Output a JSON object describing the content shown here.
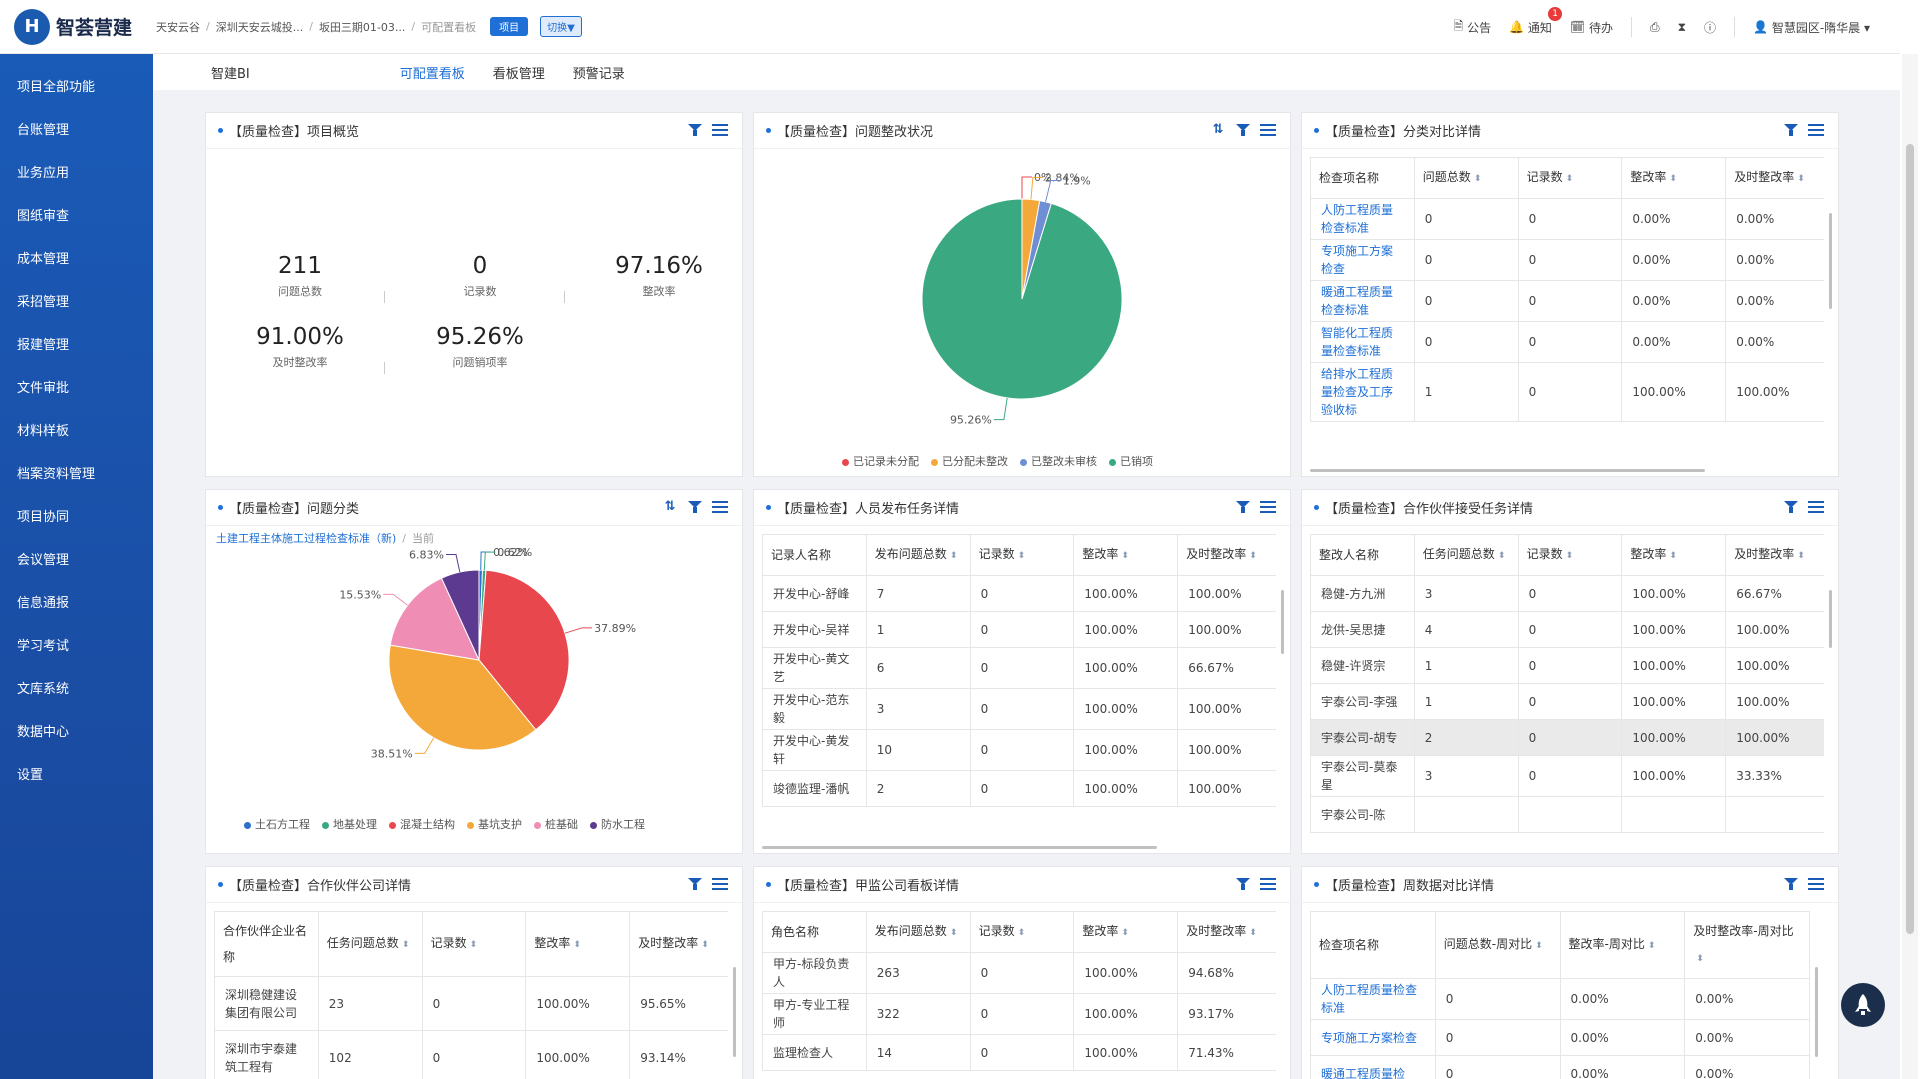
{
  "app": {
    "logo_char": "H",
    "name": "智荟营建"
  },
  "breadcrumb": [
    "天安云谷",
    "深圳天安云城投...",
    "坂田三期01-03...",
    "可配置看板"
  ],
  "header_tags": {
    "project": "项目",
    "switch": "切换▼"
  },
  "topbar": {
    "notice": "公告",
    "notify": "通知",
    "notify_count": "1",
    "todo": "待办",
    "user": "智慧园区-隋华晨 ▾"
  },
  "sidebar": [
    "项目全部功能",
    "台账管理",
    "业务应用",
    "图纸审查",
    "成本管理",
    "采招管理",
    "报建管理",
    "文件审批",
    "材料样板",
    "档案资料管理",
    "项目协同",
    "会议管理",
    "信息通报",
    "学习考试",
    "文库系统",
    "数据中心",
    "设置"
  ],
  "subnav": [
    "智建BI",
    "可配置看板",
    "看板管理",
    "预警记录"
  ],
  "panels": {
    "p1": {
      "title": "【质量检查】项目概览",
      "metrics": [
        {
          "v": "211",
          "l": "问题总数"
        },
        {
          "v": "0",
          "l": "记录数"
        },
        {
          "v": "97.16%",
          "l": "整改率"
        },
        {
          "v": "91.00%",
          "l": "及时整改率"
        },
        {
          "v": "95.26%",
          "l": "问题销项率"
        }
      ]
    },
    "p2": {
      "title": "【质量检查】问题整改状况"
    },
    "p3": {
      "title": "【质量检查】分类对比详情",
      "headers": [
        "检查项名称",
        "问题总数",
        "记录数",
        "整改率",
        "及时整改率"
      ],
      "rows": [
        [
          "人防工程质量检查标准",
          "0",
          "0",
          "0.00%",
          "0.00%"
        ],
        [
          "专项施工方案检查",
          "0",
          "0",
          "0.00%",
          "0.00%"
        ],
        [
          "暖通工程质量检查标准",
          "0",
          "0",
          "0.00%",
          "0.00%"
        ],
        [
          "智能化工程质量检查标准",
          "0",
          "0",
          "0.00%",
          "0.00%"
        ],
        [
          "给排水工程质量检查及工序验收标",
          "1",
          "0",
          "100.00%",
          "100.00%"
        ]
      ]
    },
    "p4": {
      "title": "【质量检查】问题分类",
      "link": "土建工程主体施工过程检查标准（新)",
      "current": "当前"
    },
    "p5": {
      "title": "【质量检查】人员发布任务详情",
      "headers": [
        "记录人名称",
        "发布问题总数",
        "记录数",
        "整改率",
        "及时整改率"
      ],
      "rows": [
        [
          "开发中心-舒峰",
          "7",
          "0",
          "100.00%",
          "100.00%"
        ],
        [
          "开发中心-吴祥",
          "1",
          "0",
          "100.00%",
          "100.00%"
        ],
        [
          "开发中心-黄文艺",
          "6",
          "0",
          "100.00%",
          "66.67%"
        ],
        [
          "开发中心-范东毅",
          "3",
          "0",
          "100.00%",
          "100.00%"
        ],
        [
          "开发中心-黄发轩",
          "10",
          "0",
          "100.00%",
          "100.00%"
        ],
        [
          "竣德监理-潘帆",
          "2",
          "0",
          "100.00%",
          "100.00%"
        ]
      ]
    },
    "p6": {
      "title": "【质量检查】合作伙伴接受任务详情",
      "headers": [
        "整改人名称",
        "任务问题总数",
        "记录数",
        "整改率",
        "及时整改率"
      ],
      "rows": [
        [
          "稳健-方九洲",
          "3",
          "0",
          "100.00%",
          "66.67%"
        ],
        [
          "龙供-吴思捷",
          "4",
          "0",
          "100.00%",
          "100.00%"
        ],
        [
          "稳健-许贤宗",
          "1",
          "0",
          "100.00%",
          "100.00%"
        ],
        [
          "宇泰公司-李强",
          "1",
          "0",
          "100.00%",
          "100.00%"
        ],
        [
          "宇泰公司-胡专",
          "2",
          "0",
          "100.00%",
          "100.00%"
        ],
        [
          "宇泰公司-莫泰星",
          "3",
          "0",
          "100.00%",
          "33.33%"
        ],
        [
          "宇泰公司-陈",
          "",
          "",
          "",
          ""
        ]
      ]
    },
    "p7": {
      "title": "【质量检查】合作伙伴公司详情",
      "headers": [
        "合作伙伴企业名称",
        "任务问题总数",
        "记录数",
        "整改率",
        "及时整改率"
      ],
      "rows": [
        [
          "深圳稳健建设集团有限公司",
          "23",
          "0",
          "100.00%",
          "95.65%"
        ],
        [
          "深圳市宇泰建筑工程有",
          "102",
          "0",
          "100.00%",
          "93.14%"
        ]
      ]
    },
    "p8": {
      "title": "【质量检查】甲监公司看板详情",
      "headers": [
        "角色名称",
        "发布问题总数",
        "记录数",
        "整改率",
        "及时整改率"
      ],
      "rows": [
        [
          "甲方-标段负责人",
          "263",
          "0",
          "100.00%",
          "94.68%"
        ],
        [
          "甲方-专业工程师",
          "322",
          "0",
          "100.00%",
          "93.17%"
        ],
        [
          "监理检查人",
          "14",
          "0",
          "100.00%",
          "71.43%"
        ]
      ]
    },
    "p9": {
      "title": "【质量检查】周数据对比详情",
      "headers": [
        "检查项名称",
        "问题总数-周对比",
        "整改率-周对比",
        "及时整改率-周对比"
      ],
      "rows": [
        [
          "人防工程质量检查标准",
          "0",
          "0.00%",
          "0.00%"
        ],
        [
          "专项施工方案检查",
          "0",
          "0.00%",
          "0.00%"
        ],
        [
          "暖通工程质量检",
          "0",
          "0.00%",
          "0.00%"
        ]
      ]
    }
  },
  "chart_data": [
    {
      "type": "pie",
      "title": "【质量检查】问题整改状况",
      "categories": [
        "已记录未分配",
        "已分配未整改",
        "已整改未审核",
        "已销项"
      ],
      "values": [
        0,
        2.84,
        1.9,
        95.26
      ],
      "labels": [
        "0%",
        "2.84%",
        "1.9%",
        "95.26%"
      ],
      "colors": [
        "#e8474e",
        "#f5a83a",
        "#6f8ed4",
        "#3aa981"
      ]
    },
    {
      "type": "pie",
      "title": "【质量检查】问题分类",
      "categories": [
        "土石方工程",
        "地基处理",
        "混凝土结构",
        "基坑支护",
        "桩基础",
        "防水工程"
      ],
      "values": [
        0.62,
        0.62,
        37.89,
        38.51,
        15.53,
        6.83
      ],
      "labels": [
        "0.62%",
        "0.62%",
        "37.89%",
        "38.51%",
        "15.53%",
        "6.83%"
      ],
      "colors": [
        "#2a6fc9",
        "#3aa981",
        "#e8474e",
        "#f5a83a",
        "#ef8db4",
        "#5c3a8f"
      ]
    }
  ]
}
